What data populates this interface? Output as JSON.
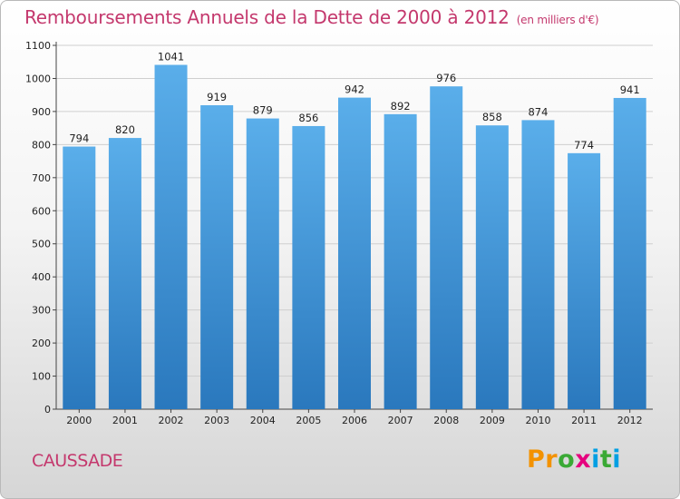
{
  "title": "Remboursements Annuels de la Dette de 2000 à 2012",
  "subtitle": "(en milliers d'€)",
  "location": "CAUSSADE",
  "brand": "Proxiti",
  "colors": {
    "title": "#c4386d",
    "bar_top": "#5aaeea",
    "bar_bottom": "#2a78bd",
    "grid": "#cfcfcf",
    "logo_letters": [
      "#f39200",
      "#f39200",
      "#3aa935",
      "#e6007e",
      "#009fe3",
      "#3aa935",
      "#009fe3"
    ]
  },
  "chart_data": {
    "type": "bar",
    "title": "Remboursements Annuels de la Dette de 2000 à 2012",
    "subtitle": "(en milliers d'€)",
    "categories": [
      "2000",
      "2001",
      "2002",
      "2003",
      "2004",
      "2005",
      "2006",
      "2007",
      "2008",
      "2009",
      "2010",
      "2011",
      "2012"
    ],
    "values": [
      794,
      820,
      1041,
      919,
      879,
      856,
      942,
      892,
      976,
      858,
      874,
      774,
      941
    ],
    "xlabel": "",
    "ylabel": "",
    "ylim": [
      0,
      1100
    ],
    "yticks": [
      0,
      100,
      200,
      300,
      400,
      500,
      600,
      700,
      800,
      900,
      1000,
      1100
    ],
    "grid": true,
    "legend": "none"
  }
}
